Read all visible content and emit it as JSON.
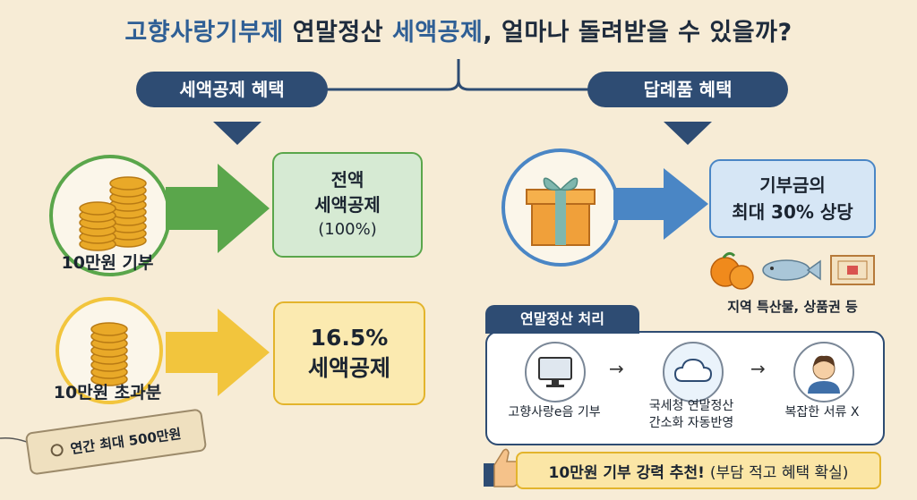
{
  "title": {
    "part1": "고향사랑기부제",
    "part2": "연말정산",
    "part3": "세액공제",
    "part4": ", 얼마나 돌려받을 수 있을까?"
  },
  "left_header": "세액공제 혜택",
  "right_header": "답례품 혜택",
  "tier1": {
    "label": "10만원 기부",
    "box_line1": "전액",
    "box_line2": "세액공제",
    "box_line3": "(100%)"
  },
  "tier2": {
    "label": "10만원 초과분",
    "box_line1": "16.5%",
    "box_line2": "세액공제"
  },
  "tag": "연간 최대 500만원",
  "gift": {
    "box_line1": "기부금의",
    "box_line2": "최대 30% 상당",
    "caption": "지역 특산물, 상품권 등"
  },
  "process": {
    "title": "연말정산 처리",
    "step1": "고향사랑e음 기부",
    "step2_line1": "국세청 연말정산",
    "step2_line2": "간소화 자동반영",
    "step3": "복잡한 서류 X",
    "arrow": "→"
  },
  "recommend": {
    "bold": "10만원 기부 강력 추천!",
    "normal": "(부담 적고 혜택 확실)"
  },
  "colors": {
    "navy": "#2e4c73",
    "green": "#5aa64b",
    "yellow": "#f2c53d",
    "blue": "#4a86c5",
    "cream": "#f7ecd6"
  },
  "icons": [
    "coins-icon",
    "gift-icon",
    "orange-icon",
    "fish-icon",
    "voucher-icon",
    "monitor-icon",
    "cloud-icon",
    "person-icon",
    "thumbs-up-icon"
  ]
}
